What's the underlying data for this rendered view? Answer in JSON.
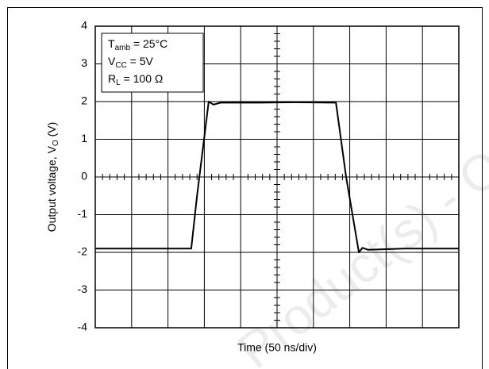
{
  "chart_data": {
    "type": "line",
    "xlabel": "Time (50 ns/div)",
    "ylabel": {
      "text": "Output voltage, V",
      "sub": "O",
      "suffix": " (V)"
    },
    "annotations": [
      {
        "symbol": "T",
        "sub": "amb",
        "text": " = 25°C"
      },
      {
        "symbol": "V",
        "sub": "CC",
        "text": " = 5V"
      },
      {
        "symbol": "R",
        "sub": "L",
        "text": " = 100 Ω"
      }
    ],
    "watermark": "Product(s) - O",
    "x": [
      0,
      2.64,
      2.8,
      3.12,
      3.25,
      3.45,
      4.5,
      5.5,
      6.62,
      6.9,
      7.25,
      7.35,
      7.5,
      8.5,
      10
    ],
    "values": [
      -1.9,
      -1.9,
      -0.5,
      2.0,
      1.92,
      1.97,
      1.97,
      1.98,
      1.97,
      0.0,
      -2.0,
      -1.88,
      -1.93,
      -1.9,
      -1.9
    ],
    "color": "#000000",
    "xlim": [
      0,
      10
    ],
    "xticks": [
      0,
      1,
      2,
      3,
      4,
      5,
      6,
      7,
      8,
      9,
      10
    ],
    "ylim": [
      -4,
      4
    ],
    "yticks": [
      -4,
      -3,
      -2,
      -1,
      0,
      1,
      2,
      3,
      4
    ],
    "grid": true
  }
}
